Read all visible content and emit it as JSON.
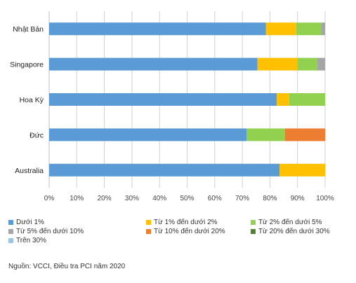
{
  "chart_data": {
    "type": "bar",
    "orientation": "horizontal",
    "stacked": true,
    "categories": [
      "Nhật Bản",
      "Singapore",
      "Hoa Kỳ",
      "Đức",
      "Australia"
    ],
    "series": [
      {
        "name": "Dưới 1%",
        "color": "#5B9BD5",
        "values": [
          78.5,
          75.5,
          82.5,
          71.5,
          83.5
        ]
      },
      {
        "name": "Từ 1% đến dưới 2%",
        "color": "#FFC000",
        "values": [
          11,
          14.5,
          4.5,
          0,
          16.5
        ]
      },
      {
        "name": "Từ 2% đến dưới 5%",
        "color": "#92D050",
        "values": [
          9,
          7,
          13,
          14,
          0
        ]
      },
      {
        "name": "Từ 5% đến dưới 10%",
        "color": "#A5A5A5",
        "values": [
          1.5,
          3,
          0,
          0,
          0
        ]
      },
      {
        "name": "Từ 10% đến dưới 20%",
        "color": "#ED7D31",
        "values": [
          0,
          0,
          0,
          14.5,
          0
        ]
      },
      {
        "name": "Từ 20% đến dưới 30%",
        "color": "#548235",
        "values": [
          0,
          0,
          0,
          0,
          0
        ]
      },
      {
        "name": "Trên 30%",
        "color": "#9DC3E6",
        "values": [
          0,
          0,
          0,
          0,
          0
        ]
      }
    ],
    "xlim": [
      0,
      100
    ],
    "xticks": [
      "0%",
      "10%",
      "20%",
      "30%",
      "40%",
      "50%",
      "60%",
      "70%",
      "80%",
      "90%",
      "100%"
    ],
    "grid": "vertical",
    "legend_position": "bottom",
    "title": "",
    "xlabel": "",
    "ylabel": ""
  },
  "source_note": "Nguồn: VCCI, Điều tra PCI năm 2020"
}
